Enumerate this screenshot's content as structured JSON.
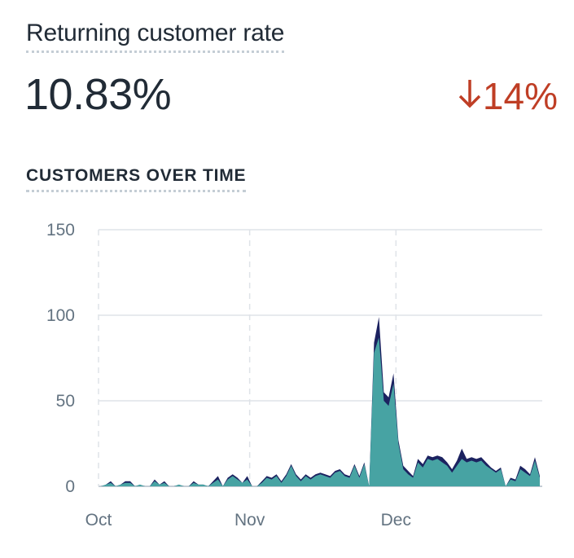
{
  "metric": {
    "title": "Returning customer rate",
    "value": "10.83%",
    "change": "14%",
    "change_direction": "down",
    "change_color": "#bf3e25"
  },
  "section_title": "CUSTOMERS OVER TIME",
  "chart_data": {
    "type": "area",
    "stacked": true,
    "title": "",
    "xlabel": "",
    "ylabel": "",
    "ylim": [
      0,
      150
    ],
    "yticks": [
      "0",
      "50",
      "100",
      "150"
    ],
    "xticks": [
      "Oct",
      "Nov",
      "Dec"
    ],
    "grid": true,
    "x_start": "Oct 1",
    "x_end": "Dec 31",
    "colors": [
      "#47a3a3",
      "#1c2260"
    ],
    "series": [
      {
        "values": [
          0,
          1,
          2,
          0,
          1,
          2,
          2,
          0,
          1,
          0,
          0,
          3,
          1,
          2,
          0,
          0,
          1,
          0,
          0,
          2,
          1,
          1,
          0,
          2,
          4,
          0,
          4,
          6,
          4,
          2,
          4,
          0,
          0,
          2,
          5,
          4,
          6,
          2,
          6,
          12,
          6,
          3,
          6,
          4,
          6,
          7,
          6,
          5,
          8,
          9,
          6,
          5,
          12,
          5,
          13,
          0,
          78,
          87,
          50,
          47,
          60,
          25,
          10,
          7,
          5,
          14,
          11,
          16,
          15,
          16,
          14,
          12,
          8,
          12,
          16,
          14,
          15,
          14,
          15,
          12,
          10,
          8,
          10,
          0,
          4,
          3,
          10,
          8,
          6,
          15,
          5
        ],
        "color": "#47a3a3"
      },
      {
        "values": [
          0,
          0,
          1,
          0,
          0,
          1,
          1,
          0,
          0,
          0,
          0,
          1,
          0,
          1,
          0,
          0,
          0,
          0,
          0,
          1,
          0,
          0,
          0,
          1,
          2,
          0,
          1,
          1,
          1,
          0,
          2,
          0,
          0,
          1,
          1,
          1,
          1,
          1,
          1,
          1,
          1,
          1,
          1,
          1,
          1,
          1,
          1,
          1,
          1,
          1,
          1,
          1,
          1,
          1,
          1,
          0,
          6,
          12,
          5,
          5,
          6,
          2,
          2,
          2,
          1,
          2,
          2,
          2,
          2,
          2,
          3,
          2,
          2,
          3,
          6,
          2,
          2,
          2,
          2,
          2,
          1,
          1,
          1,
          0,
          1,
          1,
          2,
          2,
          1,
          2,
          1
        ],
        "color": "#1c2260"
      }
    ]
  }
}
